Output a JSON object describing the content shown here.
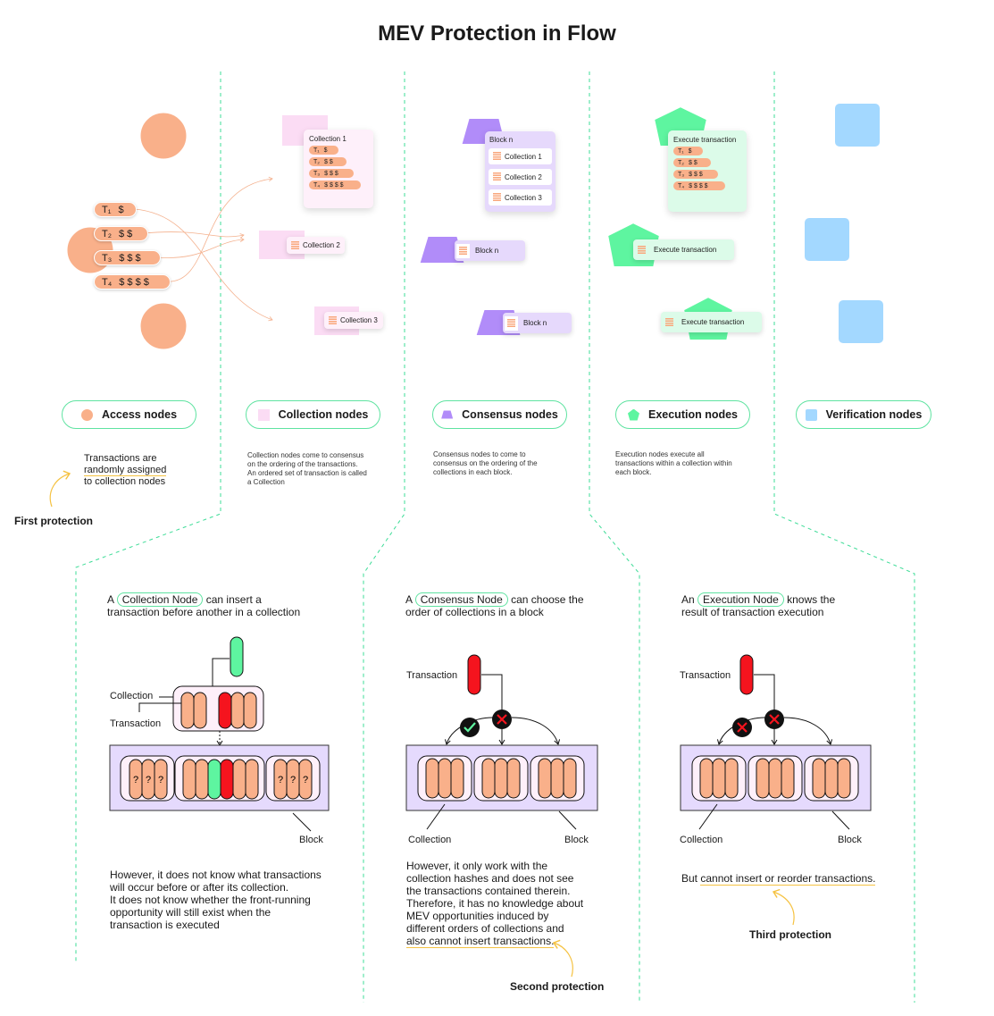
{
  "title": "MEV Protection in Flow",
  "colors": {
    "divider": "#3ddc97",
    "access": "#f9b08a",
    "collection": "#fbdcf4",
    "consensus": "#b18cf9",
    "execution": "#5ef5a0",
    "verification": "#a3d8ff",
    "highlight": "#f5c242",
    "red": "#f5141e"
  },
  "legend": [
    {
      "label": "Access nodes",
      "icon": "circle"
    },
    {
      "label": "Collection nodes",
      "icon": "square"
    },
    {
      "label": "Consensus nodes",
      "icon": "trapezoid"
    },
    {
      "label": "Execution nodes",
      "icon": "pentagon"
    },
    {
      "label": "Verification nodes",
      "icon": "rounded-square"
    }
  ],
  "access": {
    "transactions": [
      {
        "id": "T₁",
        "value": "$"
      },
      {
        "id": "T₂",
        "value": "$ $"
      },
      {
        "id": "T₃",
        "value": "$ $ $"
      },
      {
        "id": "T₄",
        "value": "$ $ $ $"
      }
    ],
    "note_pre": "Transactions are",
    "note_ul": "randomly assigned",
    "note_post": "to collection nodes",
    "protection": "First protection"
  },
  "collection": {
    "card_title": "Collection 1",
    "transactions": [
      {
        "id": "T₁",
        "value": "$"
      },
      {
        "id": "T₂",
        "value": "$ $"
      },
      {
        "id": "T₃",
        "value": "$ $ $"
      },
      {
        "id": "T₄",
        "value": "$ $ $ $"
      }
    ],
    "chips": [
      "Collection 2",
      "Collection 3"
    ],
    "description": "Collection nodes come to consensus\non the ordering of the transactions.\nAn ordered set of transaction is called\na Collection"
  },
  "consensus": {
    "card_title": "Block n",
    "rows": [
      "Collection 1",
      "Collection 2",
      "Collection 3"
    ],
    "chips": [
      "Block n",
      "Block n"
    ],
    "description": "Consensus nodes to come to\nconsensus on the ordering of the\ncollections in each block."
  },
  "execution": {
    "card_title": "Execute transaction",
    "transactions": [
      {
        "id": "T₁",
        "value": "$"
      },
      {
        "id": "T₂",
        "value": "$ $"
      },
      {
        "id": "T₃",
        "value": "$ $ $"
      },
      {
        "id": "T₄",
        "value": "$ $ $ $"
      }
    ],
    "chips": [
      "Execute transaction",
      "Execute transaction"
    ],
    "description": "Execution nodes execute all\ntransactions within a collection within\neach block."
  },
  "panels": [
    {
      "pre": "A",
      "term": "Collection Node",
      "post": "can insert a",
      "line2": "transaction before another in a collection",
      "labels": {
        "collection": "Collection",
        "transaction": "Transaction",
        "block": "Block",
        "unknown": "?"
      },
      "body": "However, it does not know what transactions\nwill occur before or after its collection.\nIt does not know whether the front-running\nopportunity will still exist when the\ntransaction is executed"
    },
    {
      "pre": "A",
      "term": "Consensus Node",
      "post": "can choose the",
      "line2": "order of collections in a block",
      "labels": {
        "transaction": "Transaction",
        "collection": "Collection",
        "block": "Block"
      },
      "body": "However, it only work with the\ncollection hashes and does not see\nthe transactions contained therein.\nTherefore, it has no knowledge about\nMEV opportunities induced by\ndifferent orders of collections and",
      "body_ul": "also cannot insert transactions.",
      "protection": "Second protection"
    },
    {
      "pre": "An",
      "term": "Execution Node",
      "post": "knows the",
      "line2": "result of transaction execution",
      "labels": {
        "transaction": "Transaction",
        "collection": "Collection",
        "block": "Block"
      },
      "body_pre": "But ",
      "body_ul": "cannot insert or reorder transactions.",
      "protection": "Third protection"
    }
  ]
}
